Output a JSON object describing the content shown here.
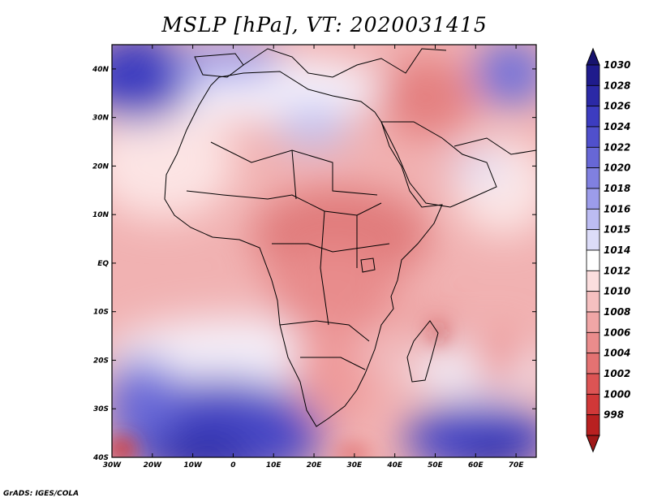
{
  "title": "MSLP [hPa], VT: 2020031415",
  "credit": "GrADS: IGES/COLA",
  "map": {
    "lon_range": [
      -30,
      75
    ],
    "lat_range": [
      -40,
      45
    ],
    "lat_ticks": [
      {
        "value": 40,
        "label": "40N"
      },
      {
        "value": 30,
        "label": "30N"
      },
      {
        "value": 20,
        "label": "20N"
      },
      {
        "value": 10,
        "label": "10N"
      },
      {
        "value": 0,
        "label": "EQ"
      },
      {
        "value": -10,
        "label": "10S"
      },
      {
        "value": -20,
        "label": "20S"
      },
      {
        "value": -30,
        "label": "30S"
      },
      {
        "value": -40,
        "label": "40S"
      }
    ],
    "lon_ticks": [
      {
        "value": -30,
        "label": "30W"
      },
      {
        "value": -20,
        "label": "20W"
      },
      {
        "value": -10,
        "label": "10W"
      },
      {
        "value": 0,
        "label": "0"
      },
      {
        "value": 10,
        "label": "10E"
      },
      {
        "value": 20,
        "label": "20E"
      },
      {
        "value": 30,
        "label": "30E"
      },
      {
        "value": 40,
        "label": "40E"
      },
      {
        "value": 50,
        "label": "50E"
      },
      {
        "value": 60,
        "label": "60E"
      },
      {
        "value": 70,
        "label": "70E"
      }
    ]
  },
  "colorbar": {
    "levels": [
      {
        "label": "1030",
        "color": "#1f1b8c"
      },
      {
        "label": "1028",
        "color": "#2b29a6"
      },
      {
        "label": "1026",
        "color": "#3c3cc0"
      },
      {
        "label": "1024",
        "color": "#5050cc"
      },
      {
        "label": "1022",
        "color": "#6767d6"
      },
      {
        "label": "1020",
        "color": "#8080e0"
      },
      {
        "label": "1018",
        "color": "#9c9cea"
      },
      {
        "label": "1016",
        "color": "#bcbcf2"
      },
      {
        "label": "1015",
        "color": "#dcdcf8"
      },
      {
        "label": "1014",
        "color": "#ffffff"
      },
      {
        "label": "1012",
        "color": "#fbdede"
      },
      {
        "label": "1010",
        "color": "#f5c0c0"
      },
      {
        "label": "1008",
        "color": "#f0a6a6"
      },
      {
        "label": "1006",
        "color": "#ea8c8c"
      },
      {
        "label": "1004",
        "color": "#e47272"
      },
      {
        "label": "1002",
        "color": "#dc5454"
      },
      {
        "label": "1000",
        "color": "#d03838"
      },
      {
        "label": "998",
        "color": "#b82020"
      }
    ]
  }
}
